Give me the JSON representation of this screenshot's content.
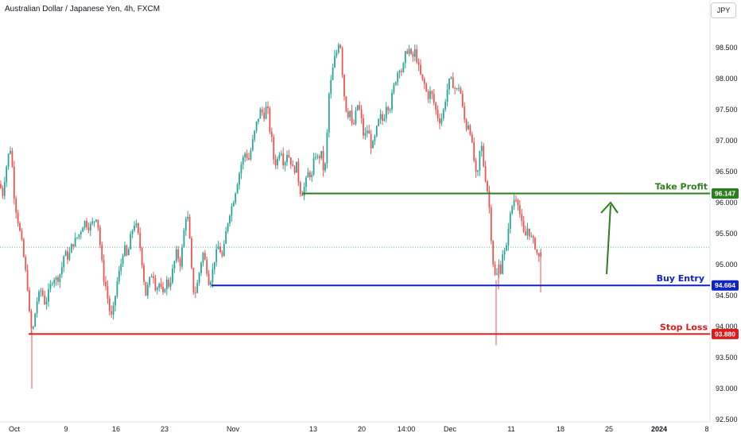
{
  "chart_data": {
    "type": "candlestick",
    "title": "Australian Dollar / Japanese Yen, 4h, FXCM",
    "currency": "JPY",
    "ylim": [
      92.5,
      99.0
    ],
    "y_ticks": [
      "92.500",
      "93.000",
      "93.500",
      "94.000",
      "94.500",
      "95.000",
      "95.500",
      "96.000",
      "96.500",
      "97.000",
      "97.500",
      "98.000",
      "98.500"
    ],
    "x_ticks": [
      "Oct",
      "9",
      "16",
      "23",
      "Nov",
      "13",
      "20",
      "14:00",
      "Dec",
      "11",
      "18",
      "25",
      "2024",
      "8"
    ],
    "levels": [
      {
        "name": "Take Profit",
        "value": 96.147,
        "label": "96.147",
        "color": "#2e7d1f"
      },
      {
        "name": "Buy Entry",
        "value": 94.664,
        "label": "94.664",
        "color": "#0f24c8"
      },
      {
        "name": "Stop Loss",
        "value": 93.88,
        "label": "93.880",
        "color": "#e01919"
      }
    ],
    "last_price": 95.28,
    "path_points": [
      [
        0,
        96.3
      ],
      [
        3,
        96.1
      ],
      [
        7,
        96.5
      ],
      [
        11,
        96.8
      ],
      [
        14,
        96.9
      ],
      [
        17,
        96.2
      ],
      [
        20,
        95.9
      ],
      [
        24,
        95.6
      ],
      [
        28,
        95.3
      ],
      [
        31,
        95.0
      ],
      [
        35,
        94.6
      ],
      [
        38,
        94.0
      ],
      [
        41,
        93.9
      ],
      [
        44,
        94.2
      ],
      [
        47,
        94.45
      ],
      [
        52,
        94.6
      ],
      [
        57,
        94.35
      ],
      [
        62,
        94.6
      ],
      [
        67,
        94.8
      ],
      [
        72,
        94.75
      ],
      [
        77,
        94.9
      ],
      [
        81,
        95.2
      ],
      [
        86,
        95.1
      ],
      [
        90,
        95.3
      ],
      [
        95,
        95.4
      ],
      [
        100,
        95.5
      ],
      [
        106,
        95.7
      ],
      [
        112,
        95.6
      ],
      [
        118,
        95.7
      ],
      [
        122,
        95.8
      ],
      [
        126,
        95.3
      ],
      [
        130,
        94.8
      ],
      [
        134,
        94.6
      ],
      [
        137,
        94.3
      ],
      [
        140,
        94.15
      ],
      [
        143,
        94.3
      ],
      [
        147,
        94.7
      ],
      [
        152,
        95.0
      ],
      [
        156,
        95.3
      ],
      [
        160,
        95.1
      ],
      [
        165,
        95.5
      ],
      [
        170,
        95.7
      ],
      [
        175,
        95.4
      ],
      [
        179,
        95.0
      ],
      [
        183,
        94.5
      ],
      [
        187,
        94.7
      ],
      [
        192,
        94.9
      ],
      [
        196,
        94.6
      ],
      [
        200,
        94.7
      ],
      [
        205,
        94.5
      ],
      [
        209,
        94.75
      ],
      [
        213,
        94.65
      ],
      [
        217,
        94.9
      ],
      [
        222,
        95.2
      ],
      [
        227,
        95.0
      ],
      [
        231,
        95.5
      ],
      [
        235,
        95.9
      ],
      [
        238,
        95.5
      ],
      [
        241,
        94.9
      ],
      [
        244,
        94.5
      ],
      [
        247,
        94.6
      ],
      [
        251,
        94.9
      ],
      [
        255,
        95.2
      ],
      [
        259,
        95.0
      ],
      [
        263,
        94.7
      ],
      [
        266,
        94.8
      ],
      [
        270,
        95.1
      ],
      [
        275,
        95.3
      ],
      [
        280,
        95.1
      ],
      [
        284,
        95.5
      ],
      [
        288,
        95.8
      ],
      [
        293,
        96.0
      ],
      [
        298,
        96.3
      ],
      [
        303,
        96.6
      ],
      [
        308,
        96.8
      ],
      [
        313,
        96.7
      ],
      [
        318,
        97.0
      ],
      [
        323,
        97.3
      ],
      [
        328,
        97.5
      ],
      [
        332,
        97.4
      ],
      [
        336,
        97.6
      ],
      [
        339,
        97.2
      ],
      [
        342,
        97.0
      ],
      [
        345,
        96.6
      ],
      [
        349,
        96.7
      ],
      [
        353,
        96.9
      ],
      [
        357,
        96.6
      ],
      [
        361,
        96.8
      ],
      [
        365,
        96.7
      ],
      [
        369,
        96.5
      ],
      [
        373,
        96.6
      ],
      [
        377,
        96.2
      ],
      [
        380,
        96.15
      ],
      [
        384,
        96.3
      ],
      [
        388,
        96.5
      ],
      [
        392,
        96.4
      ],
      [
        396,
        96.8
      ],
      [
        400,
        96.7
      ],
      [
        404,
        96.8
      ],
      [
        408,
        96.4
      ],
      [
        411,
        97.0
      ],
      [
        414,
        97.8
      ],
      [
        417,
        98.0
      ],
      [
        420,
        98.3
      ],
      [
        423,
        98.4
      ],
      [
        426,
        98.6
      ],
      [
        429,
        98.5
      ],
      [
        431,
        98.0
      ],
      [
        434,
        97.6
      ],
      [
        437,
        97.4
      ],
      [
        440,
        97.5
      ],
      [
        443,
        97.2
      ],
      [
        446,
        97.3
      ],
      [
        449,
        97.6
      ],
      [
        452,
        97.5
      ],
      [
        455,
        97.3
      ],
      [
        458,
        97.0
      ],
      [
        461,
        97.2
      ],
      [
        464,
        97.1
      ],
      [
        467,
        96.9
      ],
      [
        470,
        96.95
      ],
      [
        474,
        97.2
      ],
      [
        478,
        97.4
      ],
      [
        482,
        97.3
      ],
      [
        486,
        97.6
      ],
      [
        490,
        97.5
      ],
      [
        494,
        97.8
      ],
      [
        498,
        98.0
      ],
      [
        502,
        98.2
      ],
      [
        506,
        98.1
      ],
      [
        510,
        98.4
      ],
      [
        514,
        98.5
      ],
      [
        518,
        98.3
      ],
      [
        522,
        98.45
      ],
      [
        526,
        98.2
      ],
      [
        530,
        98.0
      ],
      [
        534,
        97.9
      ],
      [
        538,
        97.7
      ],
      [
        542,
        97.8
      ],
      [
        546,
        97.6
      ],
      [
        550,
        97.4
      ],
      [
        554,
        97.3
      ],
      [
        558,
        97.5
      ],
      [
        562,
        97.8
      ],
      [
        566,
        98.0
      ],
      [
        570,
        97.9
      ],
      [
        574,
        97.8
      ],
      [
        578,
        97.9
      ],
      [
        582,
        97.5
      ],
      [
        586,
        97.2
      ],
      [
        590,
        97.3
      ],
      [
        594,
        96.9
      ],
      [
        597,
        96.6
      ],
      [
        600,
        96.3
      ],
      [
        603,
        96.8
      ],
      [
        606,
        96.9
      ],
      [
        609,
        96.5
      ],
      [
        612,
        96.3
      ],
      [
        615,
        96.0
      ],
      [
        618,
        95.4
      ],
      [
        621,
        94.9
      ],
      [
        624,
        94.75
      ],
      [
        627,
        95.0
      ],
      [
        630,
        94.9
      ],
      [
        633,
        95.3
      ],
      [
        636,
        95.1
      ],
      [
        639,
        95.6
      ],
      [
        642,
        95.8
      ],
      [
        645,
        96.0
      ],
      [
        648,
        96.1
      ],
      [
        651,
        96.05
      ],
      [
        654,
        95.8
      ],
      [
        657,
        95.6
      ],
      [
        660,
        95.4
      ],
      [
        663,
        95.6
      ],
      [
        666,
        95.5
      ],
      [
        669,
        95.4
      ],
      [
        672,
        95.35
      ],
      [
        675,
        95.2
      ],
      [
        678,
        95.1
      ],
      [
        681,
        95.3
      ]
    ],
    "special_wicks": [
      [
        40,
        93.0
      ],
      [
        624,
        93.7
      ],
      [
        627,
        94.6
      ],
      [
        680,
        94.55
      ]
    ]
  }
}
